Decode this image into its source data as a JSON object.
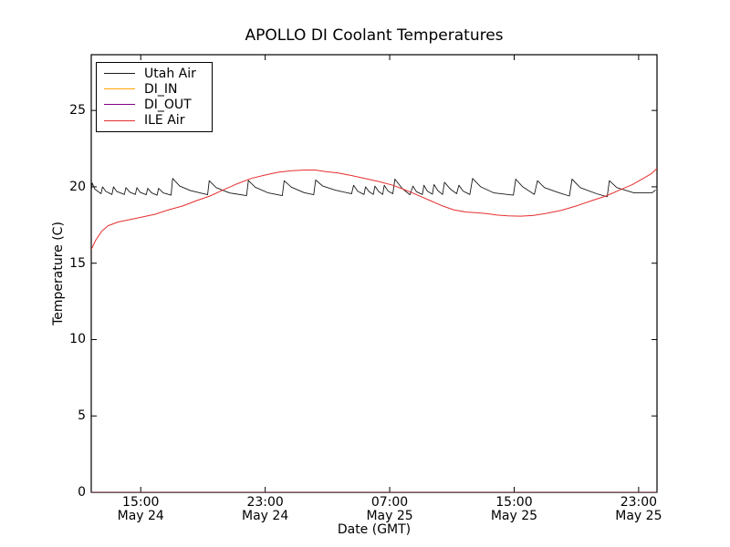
{
  "chart_data": {
    "type": "line",
    "title": "APOLLO DI Coolant Temperatures",
    "xlabel": "Date (GMT)",
    "ylabel": "Temperature (C)",
    "x_unit": "hours since May 24 00:00 GMT",
    "xlim": [
      11.82,
      48.18
    ],
    "ylim": [
      0,
      28.65
    ],
    "grid": false,
    "legend_position": "upper left",
    "background": "#ffffff",
    "spine_color": "#000000",
    "yticks": [
      0,
      5,
      10,
      15,
      20,
      25
    ],
    "xticks": [
      {
        "t": 15,
        "time": "15:00",
        "date": "May 24"
      },
      {
        "t": 23,
        "time": "23:00",
        "date": "May 24"
      },
      {
        "t": 31,
        "time": "07:00",
        "date": "May 25"
      },
      {
        "t": 39,
        "time": "15:00",
        "date": "May 25"
      },
      {
        "t": 47,
        "time": "23:00",
        "date": "May 25"
      }
    ],
    "series": [
      {
        "name": "Utah Air",
        "color": "#1a1a1a",
        "width": 0.9,
        "opacity": 1,
        "points": [
          [
            11.82,
            19.7
          ],
          [
            11.88,
            20.25
          ],
          [
            12.05,
            19.85
          ],
          [
            12.45,
            19.55
          ],
          [
            12.55,
            20.0
          ],
          [
            12.75,
            19.7
          ],
          [
            13.15,
            19.5
          ],
          [
            13.25,
            20.0
          ],
          [
            13.45,
            19.7
          ],
          [
            13.95,
            19.5
          ],
          [
            14.05,
            19.95
          ],
          [
            14.3,
            19.65
          ],
          [
            14.65,
            19.5
          ],
          [
            14.75,
            19.95
          ],
          [
            14.95,
            19.65
          ],
          [
            15.35,
            19.48
          ],
          [
            15.45,
            19.9
          ],
          [
            15.7,
            19.6
          ],
          [
            16.05,
            19.45
          ],
          [
            16.15,
            19.9
          ],
          [
            16.45,
            19.6
          ],
          [
            16.95,
            19.45
          ],
          [
            17.05,
            20.55
          ],
          [
            17.5,
            20.05
          ],
          [
            18.2,
            19.75
          ],
          [
            19.3,
            19.48
          ],
          [
            19.4,
            20.4
          ],
          [
            19.85,
            19.95
          ],
          [
            20.7,
            19.6
          ],
          [
            21.8,
            19.42
          ],
          [
            21.92,
            20.42
          ],
          [
            22.35,
            19.98
          ],
          [
            23.2,
            19.6
          ],
          [
            24.1,
            19.42
          ],
          [
            24.22,
            20.4
          ],
          [
            24.68,
            19.98
          ],
          [
            25.5,
            19.62
          ],
          [
            26.12,
            19.48
          ],
          [
            26.24,
            20.45
          ],
          [
            26.7,
            20.05
          ],
          [
            27.5,
            19.78
          ],
          [
            28.55,
            19.55
          ],
          [
            28.68,
            20.1
          ],
          [
            28.95,
            19.7
          ],
          [
            29.35,
            19.5
          ],
          [
            29.45,
            20.0
          ],
          [
            29.68,
            19.68
          ],
          [
            29.95,
            19.5
          ],
          [
            30.05,
            20.05
          ],
          [
            30.28,
            19.7
          ],
          [
            30.55,
            19.5
          ],
          [
            30.65,
            20.1
          ],
          [
            30.9,
            19.72
          ],
          [
            31.2,
            19.55
          ],
          [
            31.34,
            20.5
          ],
          [
            31.8,
            19.9
          ],
          [
            32.3,
            19.48
          ],
          [
            32.5,
            20.05
          ],
          [
            32.72,
            19.68
          ],
          [
            33.1,
            19.5
          ],
          [
            33.2,
            20.1
          ],
          [
            33.42,
            19.72
          ],
          [
            33.75,
            19.52
          ],
          [
            33.85,
            20.15
          ],
          [
            34.1,
            19.75
          ],
          [
            34.4,
            19.5
          ],
          [
            34.52,
            20.3
          ],
          [
            34.9,
            19.85
          ],
          [
            35.3,
            19.55
          ],
          [
            35.45,
            20.1
          ],
          [
            35.72,
            19.72
          ],
          [
            36.15,
            19.5
          ],
          [
            36.33,
            20.55
          ],
          [
            36.85,
            20.0
          ],
          [
            37.7,
            19.6
          ],
          [
            38.95,
            19.45
          ],
          [
            39.1,
            20.5
          ],
          [
            39.55,
            20.0
          ],
          [
            40.3,
            19.5
          ],
          [
            40.5,
            20.4
          ],
          [
            40.95,
            19.95
          ],
          [
            41.9,
            19.6
          ],
          [
            42.55,
            19.4
          ],
          [
            42.72,
            20.5
          ],
          [
            43.25,
            19.95
          ],
          [
            44.3,
            19.55
          ],
          [
            44.98,
            19.35
          ],
          [
            45.12,
            20.4
          ],
          [
            45.6,
            19.95
          ],
          [
            46.7,
            19.6
          ],
          [
            47.85,
            19.6
          ],
          [
            48.1,
            19.8
          ]
        ]
      },
      {
        "name": "DI_IN",
        "color": "#ffa500",
        "width": 1,
        "opacity": 0.85,
        "points": [
          [
            11.82,
            0
          ],
          [
            48.18,
            0
          ]
        ]
      },
      {
        "name": "DI_OUT",
        "color": "#800080",
        "width": 1,
        "opacity": 0.6,
        "points": [
          [
            11.82,
            0
          ],
          [
            48.18,
            0
          ]
        ]
      },
      {
        "name": "ILE Air",
        "color": "#e62e2e",
        "width": 1,
        "opacity": 1,
        "points": [
          [
            11.82,
            15.9
          ],
          [
            12.1,
            16.5
          ],
          [
            12.5,
            17.1
          ],
          [
            12.9,
            17.45
          ],
          [
            13.55,
            17.7
          ],
          [
            14.3,
            17.85
          ],
          [
            15.0,
            18.0
          ],
          [
            15.9,
            18.2
          ],
          [
            16.8,
            18.5
          ],
          [
            17.7,
            18.75
          ],
          [
            18.6,
            19.1
          ],
          [
            19.45,
            19.4
          ],
          [
            20.3,
            19.8
          ],
          [
            21.2,
            20.2
          ],
          [
            22.1,
            20.55
          ],
          [
            22.9,
            20.75
          ],
          [
            23.8,
            20.95
          ],
          [
            24.7,
            21.05
          ],
          [
            25.6,
            21.1
          ],
          [
            26.2,
            21.1
          ],
          [
            26.9,
            21.0
          ],
          [
            27.7,
            20.9
          ],
          [
            28.5,
            20.75
          ],
          [
            29.4,
            20.55
          ],
          [
            30.3,
            20.35
          ],
          [
            31.2,
            20.1
          ],
          [
            32.0,
            19.8
          ],
          [
            32.8,
            19.45
          ],
          [
            33.6,
            19.1
          ],
          [
            34.4,
            18.75
          ],
          [
            35.1,
            18.5
          ],
          [
            35.9,
            18.35
          ],
          [
            36.6,
            18.3
          ],
          [
            37.2,
            18.25
          ],
          [
            37.9,
            18.15
          ],
          [
            38.6,
            18.1
          ],
          [
            39.4,
            18.08
          ],
          [
            40.2,
            18.12
          ],
          [
            41.0,
            18.25
          ],
          [
            42.0,
            18.45
          ],
          [
            43.0,
            18.75
          ],
          [
            44.0,
            19.1
          ],
          [
            44.9,
            19.4
          ],
          [
            45.8,
            19.8
          ],
          [
            46.6,
            20.15
          ],
          [
            47.3,
            20.55
          ],
          [
            47.8,
            20.85
          ],
          [
            48.18,
            21.2
          ]
        ]
      }
    ]
  }
}
